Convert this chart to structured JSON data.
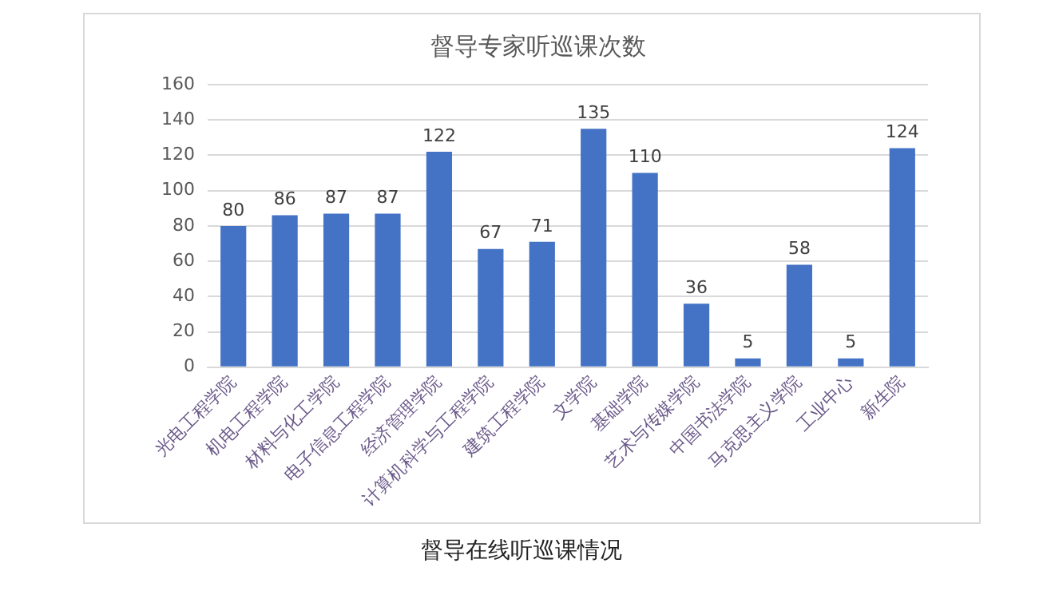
{
  "chart_data": {
    "type": "bar",
    "title": "督导专家听巡课次数",
    "categories": [
      "光电工程学院",
      "机电工程学院",
      "材料与化工学院",
      "电子信息工程学院",
      "经济管理学院",
      "计算机科学与工程学院",
      "建筑工程学院",
      "文学院",
      "基础学院",
      "艺术与传媒学院",
      "中国书法学院",
      "马克思主义学院",
      "工业中心",
      "新生院"
    ],
    "values": [
      80,
      86,
      87,
      87,
      122,
      67,
      71,
      135,
      110,
      36,
      5,
      58,
      5,
      124
    ],
    "color": "#4472c4",
    "ylim": [
      0,
      160
    ],
    "yticks": [
      0,
      20,
      40,
      60,
      80,
      100,
      120,
      140,
      160
    ],
    "grid": "y",
    "data_labels": true,
    "annotations": [
      "督导在线听巡课情况"
    ]
  }
}
